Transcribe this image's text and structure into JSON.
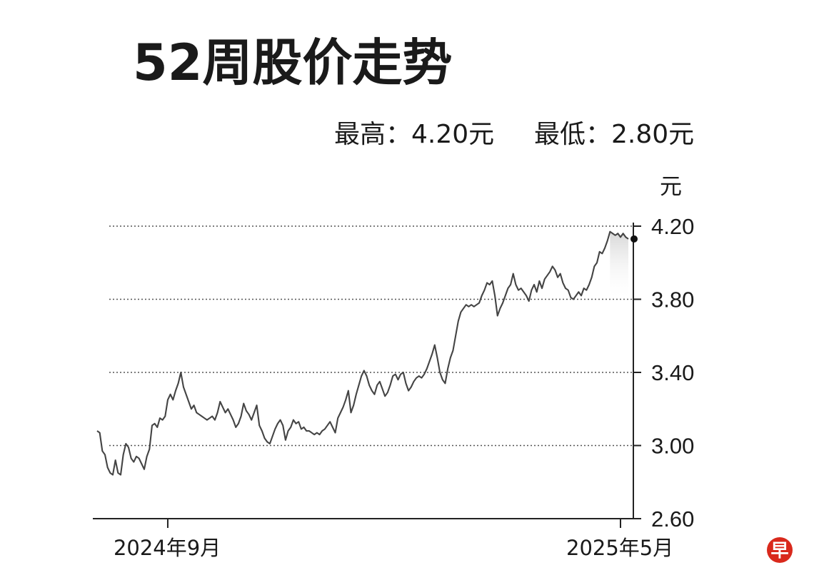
{
  "title": "52周股价走势",
  "stats": {
    "high": "最高：4.20元",
    "low": "最低：2.80元"
  },
  "logo_text": "早",
  "chart_data": {
    "type": "line",
    "ylabel": "元",
    "ylim": [
      2.6,
      4.2
    ],
    "yticks": [
      "4.20",
      "3.80",
      "3.40",
      "3.00",
      "2.60"
    ],
    "ytick_values": [
      4.2,
      3.8,
      3.4,
      3.0,
      2.6
    ],
    "xticks": [
      "2024年9月",
      "2025年5月"
    ],
    "xtick_index": [
      27,
      200
    ],
    "grid": "horizontal dotted",
    "last_point_marker": true,
    "series": [
      {
        "values": [
          3.08,
          3.07,
          2.97,
          2.95,
          2.88,
          2.85,
          2.84,
          2.92,
          2.85,
          2.84,
          2.95,
          3.01,
          2.99,
          2.93,
          2.91,
          2.94,
          2.93,
          2.9,
          2.87,
          2.94,
          2.98,
          3.11,
          3.12,
          3.1,
          3.15,
          3.14,
          3.16,
          3.25,
          3.28,
          3.25,
          3.3,
          3.34,
          3.4,
          3.32,
          3.28,
          3.24,
          3.2,
          3.22,
          3.18,
          3.17,
          3.16,
          3.15,
          3.14,
          3.15,
          3.16,
          3.14,
          3.18,
          3.24,
          3.21,
          3.18,
          3.2,
          3.17,
          3.14,
          3.1,
          3.12,
          3.16,
          3.23,
          3.19,
          3.17,
          3.14,
          3.18,
          3.22,
          3.11,
          3.08,
          3.04,
          3.02,
          3.01,
          3.05,
          3.09,
          3.12,
          3.14,
          3.11,
          3.03,
          3.08,
          3.1,
          3.14,
          3.12,
          3.13,
          3.09,
          3.1,
          3.08,
          3.08,
          3.07,
          3.06,
          3.07,
          3.06,
          3.08,
          3.09,
          3.11,
          3.13,
          3.1,
          3.07,
          3.15,
          3.18,
          3.21,
          3.25,
          3.3,
          3.18,
          3.22,
          3.28,
          3.33,
          3.38,
          3.41,
          3.38,
          3.33,
          3.3,
          3.28,
          3.33,
          3.35,
          3.31,
          3.27,
          3.29,
          3.33,
          3.38,
          3.39,
          3.36,
          3.39,
          3.4,
          3.34,
          3.3,
          3.32,
          3.35,
          3.37,
          3.38,
          3.37,
          3.39,
          3.42,
          3.46,
          3.5,
          3.55,
          3.48,
          3.4,
          3.36,
          3.34,
          3.42,
          3.48,
          3.52,
          3.6,
          3.68,
          3.73,
          3.75,
          3.77,
          3.76,
          3.77,
          3.76,
          3.77,
          3.78,
          3.82,
          3.85,
          3.89,
          3.88,
          3.9,
          3.82,
          3.71,
          3.75,
          3.78,
          3.82,
          3.86,
          3.88,
          3.94,
          3.88,
          3.85,
          3.86,
          3.84,
          3.82,
          3.79,
          3.85,
          3.88,
          3.84,
          3.9,
          3.86,
          3.91,
          3.93,
          3.95,
          3.98,
          3.96,
          3.92,
          3.94,
          3.89,
          3.86,
          3.85,
          3.81,
          3.8,
          3.82,
          3.84,
          3.82,
          3.86,
          3.85,
          3.88,
          3.92,
          3.98,
          4.0,
          4.06,
          4.05,
          4.08,
          4.12,
          4.17,
          4.16,
          4.15,
          4.16,
          4.14,
          4.16,
          4.14,
          4.13
        ]
      }
    ]
  }
}
